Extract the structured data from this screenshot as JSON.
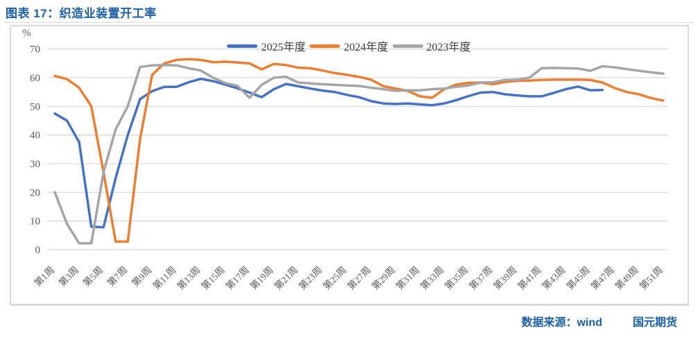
{
  "title": "图表 17：织造业装置开工率",
  "source": {
    "data_source_label": "数据来源：wind",
    "company_label": "国元期货"
  },
  "chart_data": {
    "type": "line",
    "title": "织造业装置开工率",
    "unit_label": "%",
    "xlabel": "",
    "ylabel": "%",
    "ylim": [
      0,
      70
    ],
    "y_ticks": [
      0,
      10,
      20,
      30,
      40,
      50,
      60,
      70
    ],
    "grid": true,
    "legend_position": "top-center",
    "x_unit": "week",
    "weeks_total": 52,
    "x_tick_labels": [
      "第1周",
      "第3周",
      "第5周",
      "第7周",
      "第9周",
      "第11周",
      "第13周",
      "第15周",
      "第17周",
      "第19周",
      "第21周",
      "第23周",
      "第25周",
      "第27周",
      "第29周",
      "第31周",
      "第33周",
      "第35周",
      "第37周",
      "第39周",
      "第41周",
      "第43周",
      "第45周",
      "第47周",
      "第49周",
      "第51周"
    ],
    "series": [
      {
        "name": "2025年度",
        "color": "#4472C4",
        "start_week": 1,
        "values": [
          47.5,
          45.0,
          37.5,
          8.0,
          7.8,
          25.0,
          40.0,
          52.5,
          55.3,
          56.8,
          56.8,
          58.4,
          59.6,
          58.8,
          57.6,
          56.3,
          54.8,
          53.2,
          56.0,
          57.8,
          57.0,
          56.2,
          55.5,
          55.0,
          54.0,
          53.2,
          51.8,
          51.0,
          50.8,
          51.0,
          50.7,
          50.4,
          51.0,
          52.2,
          53.6,
          54.8,
          55.0,
          54.2,
          53.8,
          53.5,
          53.5,
          54.7,
          56.0,
          56.9,
          55.6,
          55.7
        ]
      },
      {
        "name": "2024年度",
        "color": "#ED7D31",
        "start_week": 1,
        "values": [
          60.6,
          59.5,
          56.5,
          50.0,
          27.0,
          2.8,
          2.8,
          38.5,
          61.0,
          65.0,
          66.2,
          66.5,
          66.2,
          65.4,
          65.6,
          65.3,
          65.0,
          62.9,
          64.8,
          64.4,
          63.5,
          63.3,
          62.5,
          61.6,
          61.0,
          60.3,
          59.3,
          57.0,
          56.2,
          55.4,
          53.5,
          53.0,
          56.0,
          57.6,
          58.2,
          58.3,
          57.7,
          58.5,
          58.9,
          59.0,
          59.2,
          59.3,
          59.3,
          59.3,
          59.2,
          58.3,
          56.4,
          55.0,
          54.2,
          52.9,
          52.0
        ]
      },
      {
        "name": "2023年度",
        "color": "#A5A5A5",
        "start_week": 1,
        "values": [
          20.0,
          9.0,
          2.2,
          2.2,
          27.0,
          42.0,
          50.0,
          63.7,
          64.3,
          64.4,
          64.3,
          63.3,
          62.5,
          60.0,
          58.1,
          57.2,
          53.0,
          57.5,
          60.0,
          60.3,
          58.3,
          58.0,
          57.7,
          57.5,
          57.3,
          57.1,
          56.5,
          56.0,
          55.4,
          55.6,
          55.6,
          56.0,
          56.2,
          56.8,
          57.3,
          58.3,
          58.4,
          59.2,
          59.3,
          60.0,
          63.3,
          63.4,
          63.3,
          63.2,
          62.4,
          64.0,
          63.6,
          63.0,
          62.4,
          61.9,
          61.4
        ]
      }
    ]
  }
}
